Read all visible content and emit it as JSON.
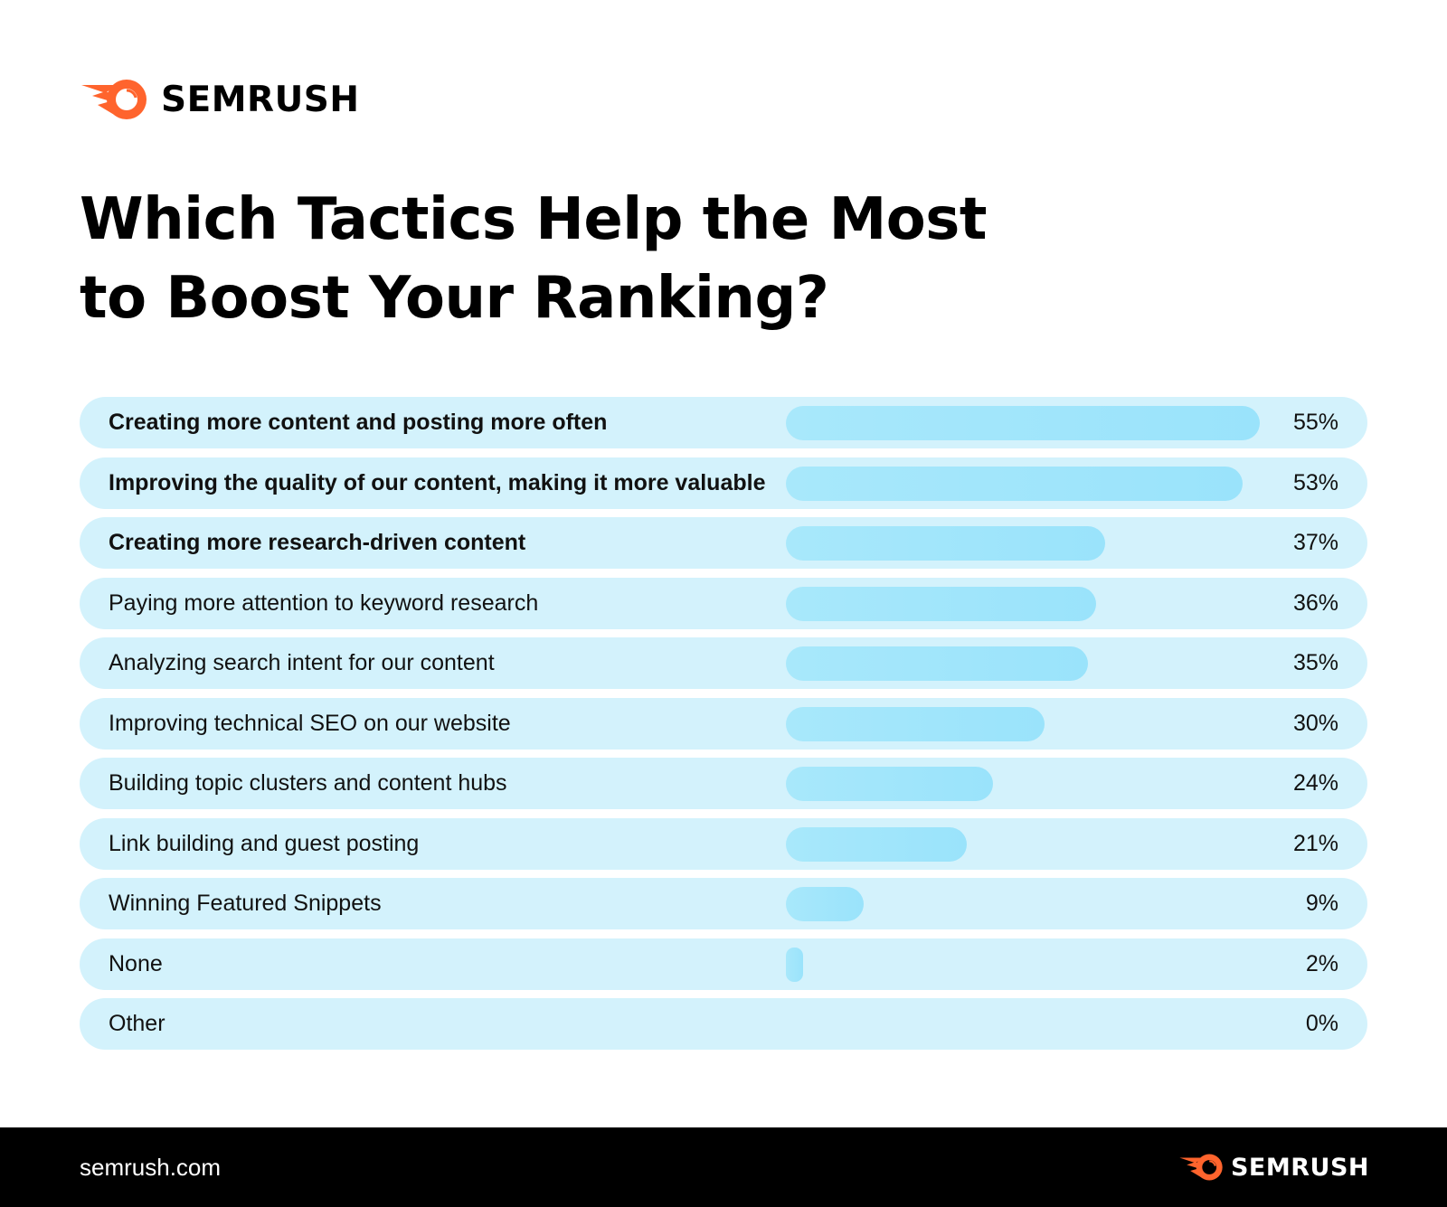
{
  "brand": {
    "name": "SEMRUSH",
    "color": "#ff642d"
  },
  "chart_data": {
    "type": "bar",
    "orientation": "horizontal",
    "title": "Which Tactics Help the Most to Boost Your Ranking?",
    "title_lines": [
      "Which Tactics Help the Most",
      "to Boost Your Ranking?"
    ],
    "categories": [
      "Creating more content and posting  more often",
      "Improving the quality of our content, making it more valuable",
      "Creating more research-driven content",
      "Paying more attention to keyword research",
      "Analyzing search intent for our content",
      "Improving technical SEO on our website",
      "Building topic clusters and content hubs",
      "Link building and guest posting",
      "Winning Featured Snippets",
      "None",
      "Other"
    ],
    "values": [
      55,
      53,
      37,
      36,
      35,
      30,
      24,
      21,
      9,
      2,
      0
    ],
    "value_labels": [
      "55%",
      "53%",
      "37%",
      "36%",
      "35%",
      "30%",
      "24%",
      "21%",
      "9%",
      "2%",
      "0%"
    ],
    "bold_rows": [
      0,
      1,
      2
    ],
    "unit": "%",
    "bar_color": "#a2e6fb",
    "row_color": "#d3f2fc"
  },
  "footer": {
    "url": "semrush.com",
    "brand": "SEMRUSH"
  }
}
